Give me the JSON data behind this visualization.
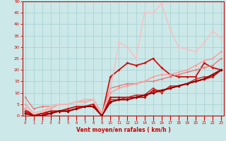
{
  "xlabel": "Vent moyen/en rafales ( km/h )",
  "xlim": [
    -0.3,
    23.3
  ],
  "ylim": [
    0,
    50
  ],
  "xticks": [
    0,
    1,
    2,
    3,
    4,
    5,
    6,
    7,
    8,
    9,
    10,
    11,
    12,
    13,
    14,
    15,
    16,
    17,
    18,
    19,
    20,
    21,
    22,
    23
  ],
  "yticks": [
    0,
    5,
    10,
    15,
    20,
    25,
    30,
    35,
    40,
    45,
    50
  ],
  "bg_color": "#cce8e8",
  "grid_color": "#aad4d4",
  "series": [
    {
      "x": [
        0,
        1,
        2,
        3,
        4,
        5,
        6,
        7,
        8,
        9,
        10,
        11,
        12,
        13,
        14,
        15,
        16,
        17,
        18,
        19,
        20,
        21,
        22,
        23
      ],
      "y": [
        3,
        0,
        1,
        1,
        2,
        2,
        3,
        4,
        4,
        0,
        8,
        8,
        8,
        8,
        8,
        11,
        11,
        12,
        13,
        14,
        15,
        16,
        17,
        20
      ],
      "color": "#cc0000",
      "lw": 1.2,
      "marker": "D",
      "ms": 2.0
    },
    {
      "x": [
        0,
        1,
        2,
        3,
        4,
        5,
        6,
        7,
        8,
        9,
        10,
        11,
        12,
        13,
        14,
        15,
        16,
        17,
        18,
        19,
        20,
        21,
        22,
        23
      ],
      "y": [
        2,
        0,
        1,
        2,
        2,
        2,
        3,
        4,
        4,
        0,
        7,
        7,
        8,
        9,
        9,
        12,
        10,
        13,
        13,
        14,
        16,
        17,
        17,
        20
      ],
      "color": "#cc2222",
      "lw": 1.0,
      "marker": "D",
      "ms": 1.8
    },
    {
      "x": [
        0,
        1,
        2,
        3,
        4,
        5,
        6,
        7,
        8,
        9,
        10,
        11,
        12,
        13,
        14,
        15,
        16,
        17,
        18,
        19,
        20,
        21,
        22,
        23
      ],
      "y": [
        2,
        0,
        1,
        2,
        2,
        3,
        4,
        4,
        5,
        0,
        17,
        20,
        23,
        22,
        23,
        25,
        21,
        18,
        17,
        17,
        17,
        23,
        21,
        20
      ],
      "color": "#cc1111",
      "lw": 1.3,
      "marker": "D",
      "ms": 2.0
    },
    {
      "x": [
        0,
        1,
        2,
        3,
        4,
        5,
        6,
        7,
        8,
        9,
        10,
        11,
        12,
        13,
        14,
        15,
        16,
        17,
        18,
        19,
        20,
        21,
        22,
        23
      ],
      "y": [
        8,
        3,
        4,
        4,
        5,
        5,
        6,
        7,
        7,
        1,
        12,
        13,
        14,
        14,
        15,
        15,
        16,
        17,
        18,
        19,
        20,
        21,
        22,
        25
      ],
      "color": "#ee7777",
      "lw": 1.0,
      "marker": "D",
      "ms": 1.8
    },
    {
      "x": [
        0,
        1,
        2,
        3,
        4,
        5,
        6,
        7,
        8,
        9,
        10,
        11,
        12,
        13,
        14,
        15,
        16,
        17,
        18,
        19,
        20,
        21,
        22,
        23
      ],
      "y": [
        5,
        1,
        2,
        3,
        5,
        5,
        6,
        6,
        7,
        1,
        10,
        12,
        13,
        14,
        15,
        17,
        18,
        18,
        19,
        20,
        22,
        24,
        25,
        28
      ],
      "color": "#ff9999",
      "lw": 1.0,
      "marker": "D",
      "ms": 1.8
    },
    {
      "x": [
        0,
        1,
        2,
        3,
        4,
        5,
        6,
        7,
        8,
        9,
        10,
        11,
        12,
        13,
        14,
        15,
        16,
        17,
        18,
        19,
        20,
        21,
        22,
        23
      ],
      "y": [
        3,
        1,
        2,
        4,
        5,
        5,
        6,
        7,
        7,
        0,
        11,
        32,
        30,
        25,
        45,
        45,
        49,
        38,
        30,
        29,
        28,
        32,
        37,
        34
      ],
      "color": "#ffbbbb",
      "lw": 0.9,
      "marker": "D",
      "ms": 1.8
    },
    {
      "x": [
        0,
        1,
        2,
        3,
        4,
        5,
        6,
        7,
        8,
        9,
        10,
        11,
        12,
        13,
        14,
        15,
        16,
        17,
        18,
        19,
        20,
        21,
        22,
        23
      ],
      "y": [
        1,
        0,
        0,
        1,
        2,
        2,
        3,
        4,
        4,
        0,
        6,
        7,
        7,
        8,
        9,
        10,
        11,
        12,
        13,
        14,
        15,
        16,
        18,
        20
      ],
      "color": "#990000",
      "lw": 1.5,
      "marker": "D",
      "ms": 2.2
    }
  ]
}
